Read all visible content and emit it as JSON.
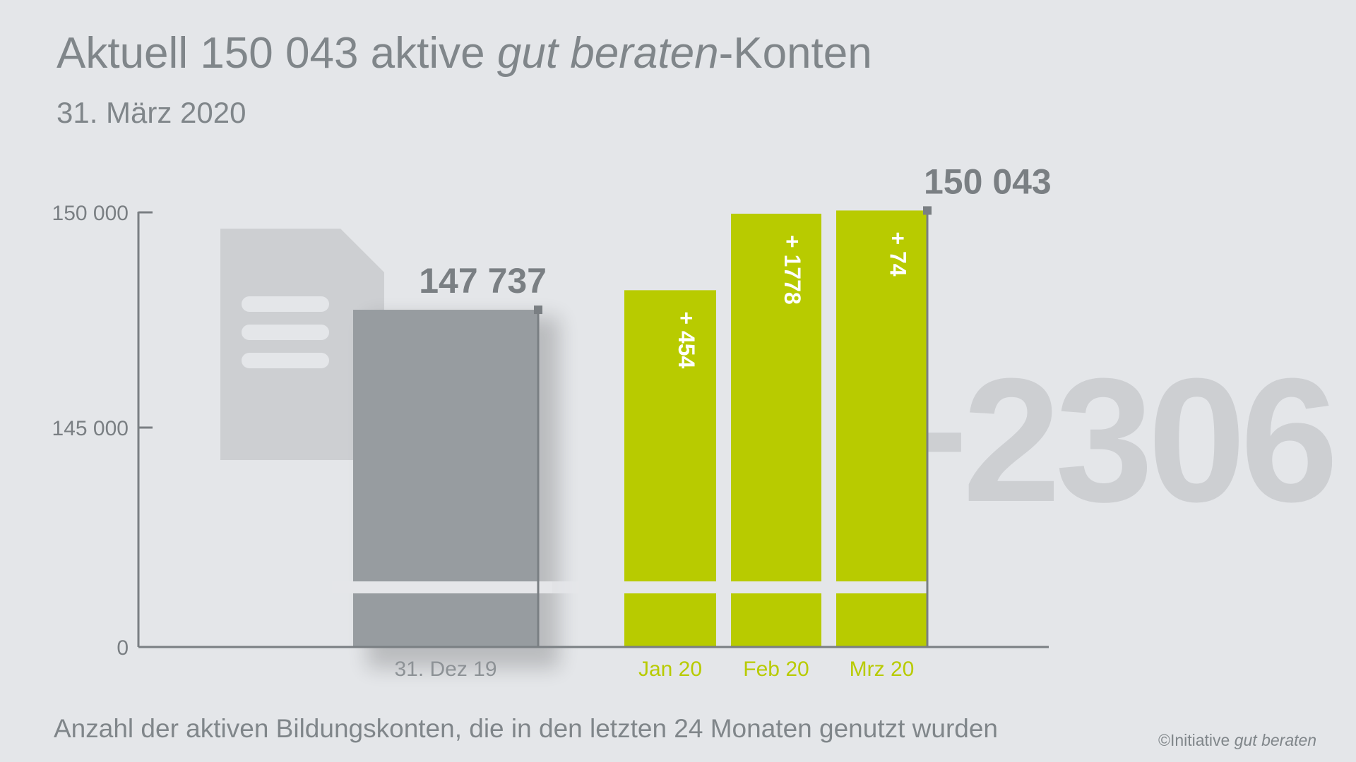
{
  "header": {
    "title_part1": "Aktuell 150 043 aktive ",
    "title_italic": "gut beraten",
    "title_part2": "-Konten",
    "subtitle": "31. März 2020"
  },
  "chart_data": {
    "type": "bar",
    "title": "Aktuell 150 043 aktive gut beraten-Konten",
    "ylabel": "",
    "xlabel": "",
    "y_ticks": [
      {
        "value": 150000,
        "label": "150 000"
      },
      {
        "value": 145000,
        "label": "145 000"
      },
      {
        "value": 0,
        "label": "0"
      }
    ],
    "axis_break": true,
    "ylim": [
      0,
      150000
    ],
    "categories": [
      "31. Dez 19",
      "Jan 20",
      "Feb 20",
      "Mrz 20"
    ],
    "values": [
      147737,
      148191,
      149969,
      150043
    ],
    "increments": [
      null,
      "+ 454",
      "+ 1778",
      "+ 74"
    ],
    "value_labels": [
      {
        "index": 0,
        "label": "147 737"
      },
      {
        "index": 3,
        "label": "150 043"
      }
    ],
    "total_change": "+2306",
    "colors": {
      "base": "#979ca0",
      "months": "#b8cb00",
      "axis": "#7a7f83"
    }
  },
  "footer": {
    "note": "Anzahl der aktiven Bildungskonten, die in den letzten 24 Monaten genutzt wurden",
    "copyright_prefix": "©Initiative ",
    "copyright_italic": "gut beraten"
  }
}
